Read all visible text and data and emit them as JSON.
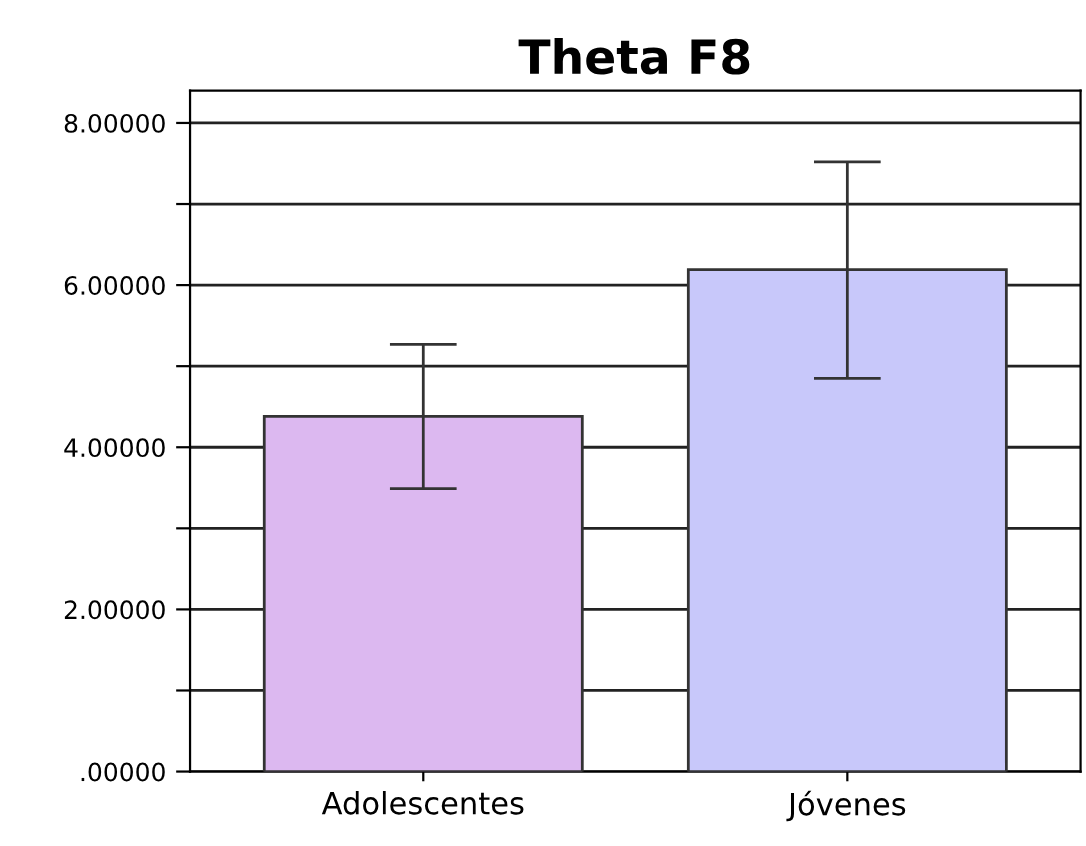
{
  "chart_data": {
    "type": "bar",
    "title": "Theta F8",
    "categories": [
      "Adolescentes",
      "Jóvenes"
    ],
    "values": [
      4.38,
      6.19
    ],
    "colors": [
      "#dcb8f0",
      "#c8c8fa"
    ],
    "errors": [
      [
        3.49,
        5.27
      ],
      [
        4.85,
        7.52
      ]
    ],
    "ylim": [
      0,
      8.4
    ],
    "yticks": [
      {
        "value": 0,
        "label": ".00000"
      },
      {
        "value": 1,
        "label": null
      },
      {
        "value": 2,
        "label": "2.00000"
      },
      {
        "value": 3,
        "label": null
      },
      {
        "value": 4,
        "label": "4.00000"
      },
      {
        "value": 5,
        "label": null
      },
      {
        "value": 6,
        "label": "6.00000"
      },
      {
        "value": 7,
        "label": null
      },
      {
        "value": 8,
        "label": "8.00000"
      }
    ],
    "grid": "y"
  }
}
